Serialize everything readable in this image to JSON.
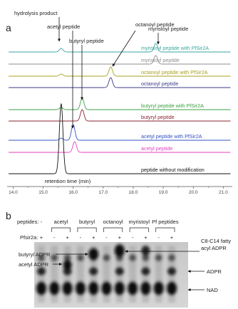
{
  "panel_a": {
    "label": "a",
    "x_axis_title": "retention time (min)",
    "xlim": [
      13.8,
      21.3
    ],
    "xticks": [
      {
        "value": 14,
        "label": "14.0"
      },
      {
        "value": 15,
        "label": "15.0"
      },
      {
        "value": 16,
        "label": "16.0"
      },
      {
        "value": 17,
        "label": "17.0"
      },
      {
        "value": 18,
        "label": "18.0"
      },
      {
        "value": 19,
        "label": "19.0"
      },
      {
        "value": 20,
        "label": "20.0"
      },
      {
        "value": 21,
        "label": "21.0"
      }
    ],
    "annotations": [
      "hydrolysis product",
      "acetyl peptide",
      "butyryl peptide",
      "octanoyl peptide",
      "myristoyl peptide"
    ],
    "traces": [
      {
        "name": "myristoyl peptide with PfSir2A",
        "color": "#3aa6a0",
        "peaks": [
          {
            "time": 15.6,
            "height": 5
          },
          {
            "time": 18.75,
            "height": 12
          }
        ]
      },
      {
        "name": "myristoyl peptide",
        "color": "#8c8c8c",
        "peaks": [
          {
            "time": 18.75,
            "height": 12
          }
        ]
      },
      {
        "name": "octanoyl peptide with PfSir2A",
        "color": "#a8a020",
        "peaks": [
          {
            "time": 15.6,
            "height": 3
          },
          {
            "time": 17.25,
            "height": 13
          }
        ]
      },
      {
        "name": "octanoyl peptide",
        "color": "#3a3a8a",
        "peaks": [
          {
            "time": 17.25,
            "height": 14
          }
        ]
      },
      {
        "name": "butyryl peptide with PfSir2A",
        "color": "#3aa040",
        "peaks": [
          {
            "time": 15.6,
            "height": 3
          },
          {
            "time": 16.3,
            "height": 16
          }
        ]
      },
      {
        "name": "butyryl peptide",
        "color": "#8a2030",
        "peaks": [
          {
            "time": 16.3,
            "height": 16
          }
        ]
      },
      {
        "name": "acetyl peptide with PfSir2A",
        "color": "#3050c0",
        "peaks": [
          {
            "time": 15.6,
            "height": 3
          },
          {
            "time": 16.0,
            "height": 22
          }
        ]
      },
      {
        "name": "acetyl peptide",
        "color": "#e040c0",
        "peaks": [
          {
            "time": 16.05,
            "height": 15
          }
        ]
      },
      {
        "name": "peptide without modification",
        "color": "#111111",
        "peaks": [
          {
            "time": 15.6,
            "height": 98
          }
        ]
      }
    ]
  },
  "panel_b": {
    "label": "b",
    "peptides_label": "peptides:",
    "groups": [
      "-",
      "acetyl",
      "butyryl",
      "octanoyl",
      "myristoyl",
      "Pf peptides"
    ],
    "enzyme_label": "Pfsir2a:",
    "enzyme_signs": [
      "+",
      "-",
      "+",
      "-",
      "+",
      "-",
      "+",
      "-",
      "+",
      "-",
      "+"
    ],
    "left_markers": [
      "butyryl ADPR",
      "acetyl ADPR"
    ],
    "right_markers": {
      "acyl_adpr": [
        "C8-C14 fatty",
        "acyl ADPR"
      ],
      "adpr": "ADPR",
      "nad": "NAD"
    }
  }
}
